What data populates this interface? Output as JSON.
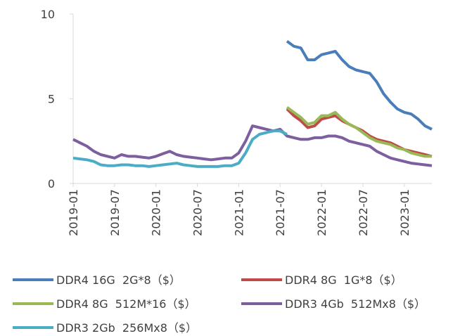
{
  "chart_data": {
    "type": "line",
    "x": [
      "2019-01",
      "2019-02",
      "2019-03",
      "2019-04",
      "2019-05",
      "2019-06",
      "2019-07",
      "2019-08",
      "2019-09",
      "2019-10",
      "2019-11",
      "2019-12",
      "2020-01",
      "2020-02",
      "2020-03",
      "2020-04",
      "2020-05",
      "2020-06",
      "2020-07",
      "2020-08",
      "2020-09",
      "2020-10",
      "2020-11",
      "2020-12",
      "2021-01",
      "2021-02",
      "2021-03",
      "2021-04",
      "2021-05",
      "2021-06",
      "2021-07",
      "2021-08",
      "2021-09",
      "2021-10",
      "2021-11",
      "2021-12",
      "2022-01",
      "2022-02",
      "2022-03",
      "2022-04",
      "2022-05",
      "2022-06",
      "2022-07",
      "2022-08",
      "2022-09",
      "2022-10",
      "2022-11",
      "2022-12",
      "2023-01",
      "2023-02",
      "2023-03",
      "2023-04",
      "2023-05"
    ],
    "xticks": [
      "2019-01",
      "2019-07",
      "2020-01",
      "2020-07",
      "2021-01",
      "2021-07",
      "2022-01",
      "2022-07",
      "2023-01"
    ],
    "ylim": [
      0,
      10
    ],
    "yticks": [
      0,
      5,
      10
    ],
    "grid": false,
    "series": [
      {
        "name": "DDR4 16G  2G*8（$）",
        "color": "#4a7ebb",
        "values": [
          null,
          null,
          null,
          null,
          null,
          null,
          null,
          null,
          null,
          null,
          null,
          null,
          null,
          null,
          null,
          null,
          null,
          null,
          null,
          null,
          null,
          null,
          null,
          null,
          null,
          null,
          null,
          null,
          null,
          null,
          null,
          8.4,
          8.1,
          8.0,
          7.3,
          7.3,
          7.6,
          7.7,
          7.8,
          7.3,
          6.9,
          6.7,
          6.6,
          6.5,
          6.0,
          5.3,
          4.8,
          4.4,
          4.2,
          4.1,
          3.8,
          3.4,
          3.2
        ]
      },
      {
        "name": "DDR4 8G  1G*8（$）",
        "color": "#be4b48",
        "values": [
          null,
          null,
          null,
          null,
          null,
          null,
          null,
          null,
          null,
          null,
          null,
          null,
          null,
          null,
          null,
          null,
          null,
          null,
          null,
          null,
          null,
          null,
          null,
          null,
          null,
          null,
          null,
          null,
          null,
          null,
          null,
          4.4,
          4.0,
          3.7,
          3.3,
          3.4,
          3.8,
          3.9,
          4.0,
          3.7,
          3.5,
          3.3,
          3.1,
          2.8,
          2.6,
          2.5,
          2.4,
          2.2,
          2.0,
          1.9,
          1.8,
          1.7,
          1.6
        ]
      },
      {
        "name": "DDR4 8G  512M*16（$）",
        "color": "#98b954",
        "values": [
          null,
          null,
          null,
          null,
          null,
          null,
          null,
          null,
          null,
          null,
          null,
          null,
          null,
          null,
          null,
          null,
          null,
          null,
          null,
          null,
          null,
          null,
          null,
          null,
          null,
          null,
          null,
          null,
          null,
          null,
          null,
          4.5,
          4.2,
          3.9,
          3.5,
          3.6,
          4.0,
          4.0,
          4.2,
          3.8,
          3.5,
          3.3,
          3.0,
          2.7,
          2.5,
          2.4,
          2.3,
          2.1,
          2.0,
          1.8,
          1.7,
          1.6,
          1.6
        ]
      },
      {
        "name": "DDR3 4Gb  512Mx8（$）",
        "color": "#7d5fa0",
        "values": [
          2.6,
          2.4,
          2.2,
          1.9,
          1.7,
          1.6,
          1.5,
          1.7,
          1.6,
          1.6,
          1.55,
          1.5,
          1.6,
          1.75,
          1.9,
          1.7,
          1.6,
          1.55,
          1.5,
          1.45,
          1.4,
          1.45,
          1.5,
          1.5,
          1.8,
          2.5,
          3.4,
          3.3,
          3.2,
          3.1,
          3.2,
          2.8,
          2.7,
          2.6,
          2.6,
          2.7,
          2.7,
          2.8,
          2.8,
          2.7,
          2.5,
          2.4,
          2.3,
          2.2,
          1.9,
          1.7,
          1.5,
          1.4,
          1.3,
          1.2,
          1.15,
          1.1,
          1.05
        ]
      },
      {
        "name": "DDR3 2Gb  256Mx8（$）",
        "color": "#4bacc6",
        "values": [
          1.5,
          1.45,
          1.4,
          1.3,
          1.1,
          1.05,
          1.05,
          1.1,
          1.1,
          1.05,
          1.05,
          1.0,
          1.05,
          1.1,
          1.15,
          1.2,
          1.1,
          1.05,
          1.0,
          1.0,
          1.0,
          1.0,
          1.05,
          1.05,
          1.2,
          1.8,
          2.6,
          2.9,
          3.0,
          3.1,
          3.1,
          2.9,
          null,
          null,
          null,
          null,
          null,
          null,
          null,
          null,
          null,
          null,
          null,
          null,
          null,
          null,
          null,
          null,
          null,
          null,
          null,
          null,
          null
        ]
      }
    ]
  }
}
